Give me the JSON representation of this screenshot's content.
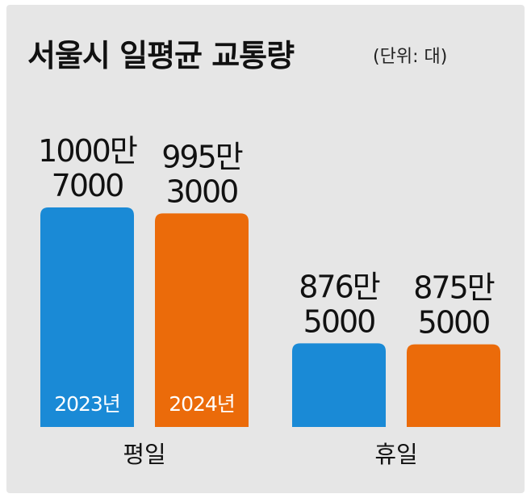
{
  "title": "서울시 일평균 교통량",
  "unit": "(단위: 대)",
  "colors": {
    "series_2023": "#1a8ad6",
    "series_2024": "#eb6b0a",
    "background": "#e6e6e6"
  },
  "chart_data": {
    "type": "bar",
    "title": "서울시 일평균 교통량",
    "unit": "(단위: 대)",
    "categories": [
      "평일",
      "휴일"
    ],
    "series": [
      {
        "name": "2023년",
        "values": [
          10007000,
          8765000
        ],
        "value_labels": [
          [
            "1000만",
            "7000"
          ],
          [
            "876만",
            "5000"
          ]
        ]
      },
      {
        "name": "2024년",
        "values": [
          9953000,
          8755000
        ],
        "value_labels": [
          [
            "995만",
            "3000"
          ],
          [
            "875만",
            "5000"
          ]
        ]
      }
    ]
  }
}
